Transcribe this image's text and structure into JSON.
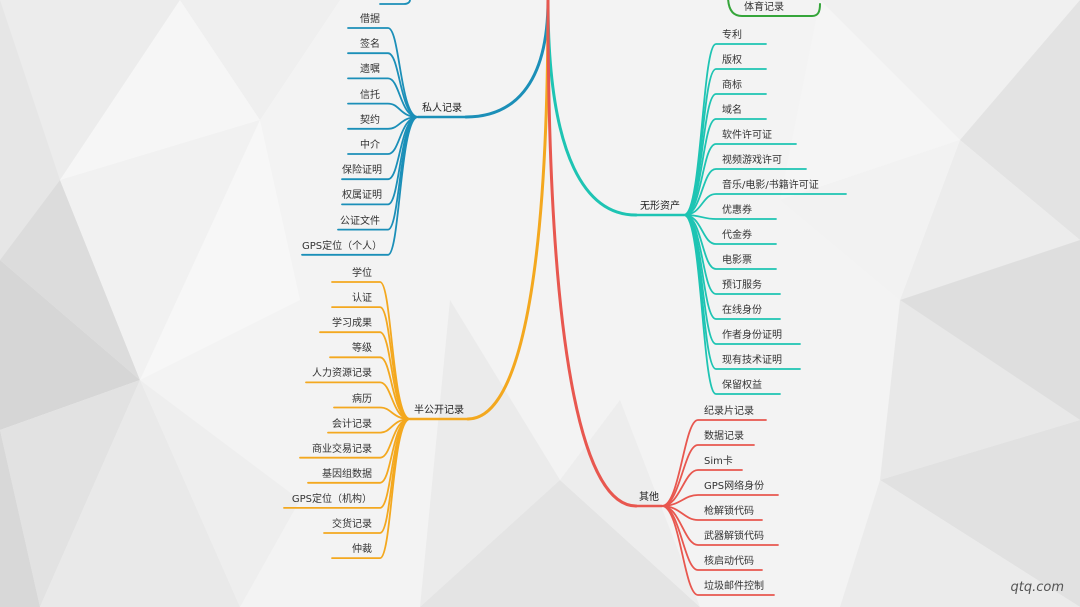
{
  "colors": {
    "blue": "#1b8fb8",
    "orange": "#f3a81f",
    "red": "#e8574f",
    "teal": "#1ec4b3",
    "green": "#35a53a"
  },
  "branches": [
    {
      "id": "private",
      "label": "私人记录",
      "color": "blue",
      "side": "left",
      "items": [
        "借据",
        "签名",
        "遗嘱",
        "信托",
        "契约",
        "中介",
        "保险证明",
        "权属证明",
        "公证文件",
        "GPS定位（个人）"
      ]
    },
    {
      "id": "semi-public",
      "label": "半公开记录",
      "color": "orange",
      "side": "left",
      "items": [
        "学位",
        "认证",
        "学习成果",
        "等级",
        "人力资源记录",
        "病历",
        "会计记录",
        "商业交易记录",
        "基因组数据",
        "GPS定位（机构）",
        "交货记录",
        "仲裁"
      ]
    },
    {
      "id": "intangible",
      "label": "无形资产",
      "color": "teal",
      "side": "right",
      "items": [
        "专利",
        "版权",
        "商标",
        "域名",
        "软件许可证",
        "视频游戏许可",
        "音乐/电影/书籍许可证",
        "优惠券",
        "代金券",
        "电影票",
        "预订服务",
        "在线身份",
        "作者身份证明",
        "现有技术证明",
        "保留权益"
      ]
    },
    {
      "id": "other",
      "label": "其他",
      "color": "red",
      "side": "right",
      "items": [
        "纪录片记录",
        "数据记录",
        "Sim卡",
        "GPS网络身份",
        "枪解锁代码",
        "武器解锁代码",
        "核启动代码",
        "垃圾邮件控制"
      ]
    }
  ],
  "top_partial": {
    "label": "体育记录",
    "color": "green"
  },
  "watermark": "qtq.com"
}
